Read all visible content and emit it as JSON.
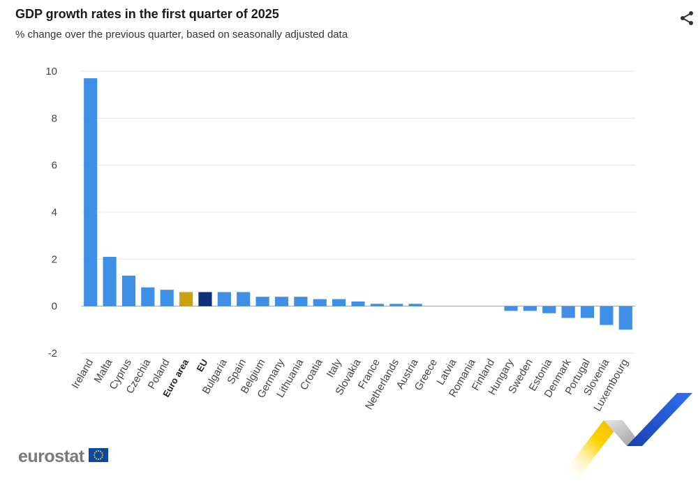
{
  "header": {
    "title": "GDP growth rates in the first quarter of 2025",
    "subtitle": "% change over the previous quarter, based on seasonally adjusted data"
  },
  "icons": {
    "share": "share-icon",
    "flag": "eu-flag-icon"
  },
  "brand": {
    "logo_text": "eurostat"
  },
  "colors": {
    "country": "#3f8fe6",
    "euro_area": "#c9a20e",
    "eu": "#0e2f7a",
    "grid": "#e2e5ea",
    "axis_text": "#444444"
  },
  "chart_data": {
    "type": "bar",
    "title": "GDP growth rates in the first quarter of 2025",
    "subtitle": "% change over the previous quarter, based on seasonally adjusted data",
    "xlabel": "",
    "ylabel": "",
    "ylim": [
      -2,
      10
    ],
    "yticks": [
      -2,
      0,
      2,
      4,
      6,
      8,
      10
    ],
    "grid": true,
    "categories": [
      "Ireland",
      "Malta",
      "Cyprus",
      "Czechia",
      "Poland",
      "Euro area",
      "EU",
      "Bulgaria",
      "Spain",
      "Belgium",
      "Germany",
      "Lithuania",
      "Croatia",
      "Italy",
      "Slovakia",
      "France",
      "Netherlands",
      "Austria",
      "Greece",
      "Latvia",
      "Romania",
      "Finland",
      "Hungary",
      "Sweden",
      "Estonia",
      "Denmark",
      "Portugal",
      "Slovenia",
      "Luxembourg"
    ],
    "values": [
      9.7,
      2.1,
      1.3,
      0.8,
      0.7,
      0.6,
      0.6,
      0.6,
      0.6,
      0.4,
      0.4,
      0.4,
      0.3,
      0.3,
      0.2,
      0.1,
      0.1,
      0.1,
      0.0,
      0.0,
      0.0,
      0.0,
      -0.2,
      -0.2,
      -0.3,
      -0.5,
      -0.5,
      -0.8,
      -1.0
    ],
    "bar_types": [
      "country",
      "country",
      "country",
      "country",
      "country",
      "euro_area",
      "eu",
      "country",
      "country",
      "country",
      "country",
      "country",
      "country",
      "country",
      "country",
      "country",
      "country",
      "country",
      "country",
      "country",
      "country",
      "country",
      "country",
      "country",
      "country",
      "country",
      "country",
      "country",
      "country"
    ]
  }
}
